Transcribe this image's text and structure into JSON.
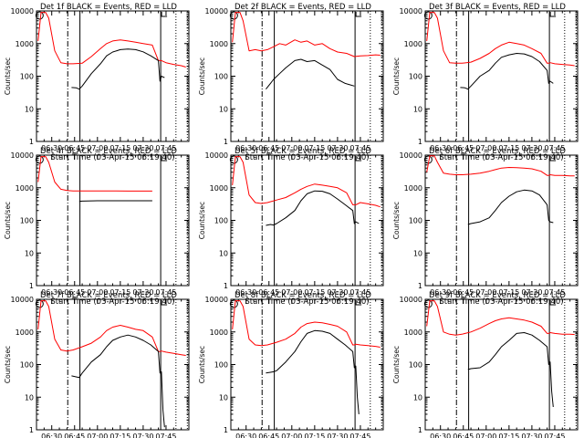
{
  "chart_data": {
    "type": "line",
    "x_tick_labels": [
      "06:30",
      "06:45",
      "07:00",
      "07:15",
      "07:30",
      "07:45"
    ],
    "x_ticks_minutes": [
      30,
      45,
      60,
      75,
      90,
      105
    ],
    "xlim_minutes": [
      20,
      120
    ],
    "y_tick_labels": [
      "1",
      "10",
      "100",
      "1000",
      "10000"
    ],
    "ylim": [
      1,
      10000
    ],
    "yscale": "log",
    "ylabel": "Counts/sec",
    "xlabel": "Start Time (03-Apr-15 06:19:40)",
    "series_colors": {
      "events": "#000000",
      "lld": "#ff0000"
    },
    "vertical_markers_minutes": {
      "dash_dot": 40.5,
      "solid": 48.5,
      "solid_right": 101.5,
      "dotted": [
        111.5,
        119
      ]
    },
    "panels": [
      {
        "title": "Det 1f BLACK = Events, RED = LLD",
        "lld": {
          "x": [
            21,
            23,
            26,
            28,
            32,
            36,
            40,
            44,
            50,
            56,
            62,
            66,
            70,
            75,
            80,
            85,
            90,
            96,
            100,
            101,
            102,
            105,
            110,
            115,
            118
          ],
          "y": [
            1200,
            9000,
            9000,
            6000,
            600,
            260,
            240,
            240,
            250,
            400,
            700,
            1000,
            1200,
            1300,
            1200,
            1100,
            1000,
            900,
            300,
            300,
            300,
            260,
            230,
            210,
            190
          ]
        },
        "events": {
          "x": [
            43,
            46,
            48,
            50,
            56,
            62,
            66,
            70,
            75,
            80,
            85,
            90,
            95,
            100,
            101,
            102,
            104
          ],
          "y": [
            45,
            44,
            40,
            50,
            120,
            240,
            420,
            550,
            650,
            680,
            650,
            560,
            420,
            300,
            70,
            100,
            90
          ]
        }
      },
      {
        "title": "Det 2f BLACK = Events, RED = LLD",
        "lld": {
          "x": [
            21,
            23,
            26,
            28,
            32,
            36,
            40,
            44,
            48,
            52,
            56,
            62,
            66,
            70,
            75,
            80,
            85,
            90,
            96,
            101,
            105,
            110,
            115,
            118
          ],
          "y": [
            1100,
            9000,
            9000,
            5000,
            600,
            650,
            600,
            650,
            800,
            1000,
            900,
            1300,
            1100,
            1200,
            900,
            1000,
            700,
            550,
            500,
            400,
            420,
            430,
            450,
            440
          ]
        },
        "events": {
          "x": [
            43,
            46,
            48,
            52,
            56,
            62,
            66,
            70,
            75,
            80,
            85,
            90,
            95,
            101
          ],
          "y": [
            40,
            60,
            80,
            120,
            180,
            300,
            330,
            280,
            300,
            220,
            160,
            80,
            60,
            50
          ]
        }
      },
      {
        "title": "Det 3f BLACK = Events, RED = LLD",
        "lld": {
          "x": [
            21,
            23,
            26,
            28,
            32,
            36,
            40,
            44,
            50,
            56,
            62,
            66,
            70,
            75,
            80,
            85,
            90,
            96,
            100,
            101,
            102,
            105,
            110,
            115,
            118
          ],
          "y": [
            1200,
            9000,
            9000,
            6000,
            600,
            260,
            250,
            250,
            270,
            350,
            500,
            700,
            900,
            1100,
            1000,
            900,
            700,
            500,
            250,
            250,
            260,
            240,
            230,
            220,
            210
          ]
        },
        "events": {
          "x": [
            43,
            46,
            48,
            50,
            56,
            62,
            66,
            70,
            75,
            80,
            85,
            90,
            95,
            100,
            101,
            102,
            104
          ],
          "y": [
            45,
            44,
            40,
            50,
            100,
            150,
            250,
            380,
            450,
            500,
            480,
            400,
            280,
            150,
            60,
            70,
            60
          ]
        }
      },
      {
        "title": "Det 4f BLACK = Events, RED = LLD",
        "lld": {
          "x": [
            21,
            23,
            26,
            28,
            32,
            36,
            40,
            44,
            50,
            60,
            70,
            80,
            90,
            96
          ],
          "y": [
            1500,
            9000,
            9000,
            6000,
            1500,
            900,
            820,
            800,
            800,
            800,
            800,
            790,
            790,
            790
          ]
        },
        "events": {
          "x": [
            48,
            50,
            60,
            70,
            80,
            90,
            96
          ],
          "y": [
            380,
            390,
            400,
            400,
            400,
            400,
            400
          ]
        }
      },
      {
        "title": "Det 5f BLACK = Events, RED = LLD",
        "lld": {
          "x": [
            21,
            23,
            26,
            28,
            32,
            36,
            40,
            44,
            50,
            56,
            62,
            66,
            70,
            75,
            80,
            85,
            90,
            96,
            100,
            101,
            102,
            105,
            110,
            115,
            118
          ],
          "y": [
            1200,
            9000,
            9000,
            6000,
            600,
            350,
            330,
            350,
            420,
            500,
            700,
            900,
            1100,
            1300,
            1200,
            1100,
            1000,
            700,
            300,
            300,
            300,
            350,
            320,
            290,
            260
          ]
        },
        "events": {
          "x": [
            43,
            46,
            48,
            50,
            56,
            62,
            66,
            70,
            75,
            80,
            85,
            90,
            95,
            100,
            101,
            102,
            104
          ],
          "y": [
            70,
            75,
            72,
            80,
            120,
            200,
            400,
            650,
            800,
            780,
            650,
            450,
            300,
            200,
            80,
            90,
            80
          ]
        }
      },
      {
        "title": "Det 6f BLACK = Events, RED = LLD",
        "lld": {
          "x": [
            21,
            23,
            26,
            28,
            32,
            36,
            40,
            44,
            50,
            56,
            62,
            66,
            70,
            75,
            80,
            85,
            90,
            96,
            100,
            101,
            102,
            105,
            110,
            115,
            118
          ],
          "y": [
            3000,
            9500,
            9500,
            6000,
            2800,
            2600,
            2500,
            2500,
            2600,
            2800,
            3200,
            3600,
            4000,
            4200,
            4100,
            4000,
            3800,
            3200,
            2400,
            2400,
            2500,
            2400,
            2400,
            2300,
            2300
          ]
        },
        "events": {
          "x": [
            48,
            50,
            56,
            62,
            66,
            70,
            75,
            80,
            85,
            90,
            95,
            100,
            101,
            102,
            104
          ],
          "y": [
            75,
            80,
            90,
            120,
            200,
            350,
            550,
            750,
            850,
            800,
            600,
            300,
            100,
            90,
            85
          ]
        }
      },
      {
        "title": "Det 7f BLACK = Events, RED = LLD",
        "lld": {
          "x": [
            21,
            23,
            26,
            28,
            32,
            36,
            40,
            44,
            50,
            56,
            62,
            66,
            70,
            75,
            80,
            85,
            90,
            96,
            100,
            101,
            102,
            105,
            110,
            115,
            118
          ],
          "y": [
            1200,
            9000,
            9000,
            6000,
            600,
            280,
            260,
            280,
            350,
            450,
            700,
            1100,
            1400,
            1600,
            1400,
            1200,
            1100,
            700,
            250,
            250,
            260,
            240,
            220,
            200,
            190
          ]
        },
        "events": {
          "x": [
            43,
            46,
            48,
            50,
            56,
            62,
            66,
            70,
            75,
            80,
            85,
            90,
            95,
            100,
            101,
            102,
            103,
            104
          ],
          "y": [
            45,
            42,
            40,
            55,
            120,
            200,
            350,
            550,
            700,
            800,
            700,
            550,
            400,
            250,
            55,
            60,
            4,
            1.2
          ]
        }
      },
      {
        "title": "Det 8f BLACK = Events, RED = LLD",
        "lld": {
          "x": [
            21,
            23,
            26,
            28,
            32,
            36,
            40,
            44,
            50,
            56,
            62,
            66,
            70,
            75,
            80,
            85,
            90,
            96,
            100,
            101,
            102,
            105,
            110,
            115,
            118
          ],
          "y": [
            1200,
            9000,
            9000,
            6000,
            600,
            400,
            380,
            400,
            480,
            600,
            900,
            1400,
            1800,
            2000,
            1900,
            1700,
            1500,
            1000,
            400,
            400,
            420,
            400,
            380,
            360,
            340
          ]
        },
        "events": {
          "x": [
            43,
            46,
            48,
            50,
            56,
            62,
            66,
            70,
            75,
            80,
            85,
            90,
            95,
            100,
            101,
            102,
            103,
            104
          ],
          "y": [
            55,
            58,
            60,
            65,
            120,
            250,
            500,
            900,
            1100,
            1050,
            900,
            600,
            400,
            250,
            80,
            90,
            10,
            3
          ]
        }
      },
      {
        "title": "Det 9f BLACK = Events, RED = LLD",
        "lld": {
          "x": [
            21,
            23,
            26,
            28,
            32,
            36,
            40,
            44,
            50,
            56,
            62,
            66,
            70,
            75,
            80,
            85,
            90,
            96,
            100,
            101,
            102,
            105,
            110,
            115,
            118
          ],
          "y": [
            1500,
            9000,
            9000,
            6000,
            1000,
            850,
            800,
            850,
            1000,
            1300,
            1800,
            2200,
            2500,
            2700,
            2500,
            2300,
            2000,
            1500,
            900,
            900,
            950,
            900,
            850,
            850,
            830
          ]
        },
        "events": {
          "x": [
            48,
            50,
            56,
            62,
            66,
            70,
            75,
            80,
            85,
            90,
            95,
            100,
            101,
            102,
            103,
            104
          ],
          "y": [
            70,
            75,
            80,
            120,
            200,
            350,
            550,
            900,
            950,
            800,
            550,
            350,
            100,
            120,
            15,
            5
          ]
        }
      }
    ]
  }
}
